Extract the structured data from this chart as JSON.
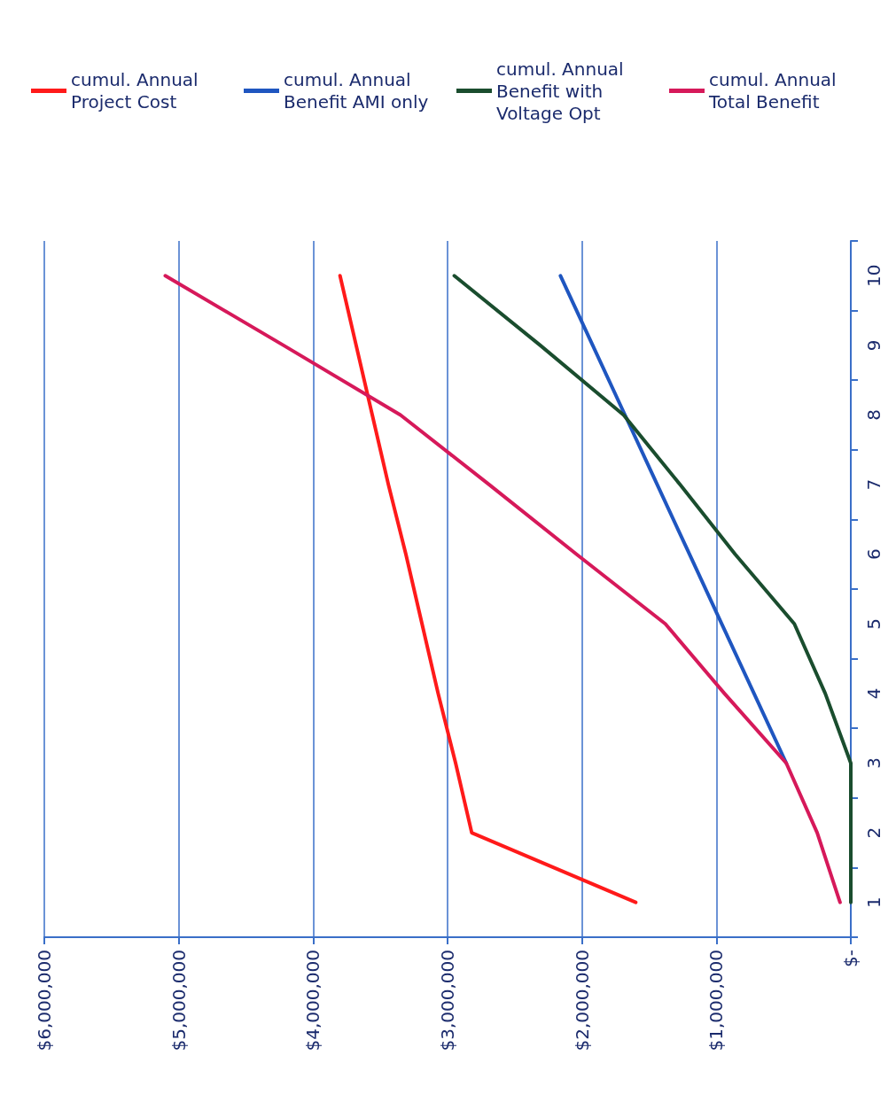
{
  "chart_data": {
    "type": "line",
    "orientation": "horizontal",
    "categories": [
      "10",
      "9",
      "8",
      "7",
      "6",
      "5",
      "4",
      "3",
      "2",
      "1"
    ],
    "series": [
      {
        "name": "cumul. Annual Project Cost",
        "color": "#ff1a1a",
        "values": [
          3800000,
          3680000,
          3560000,
          3440000,
          3310000,
          3190000,
          3070000,
          2940000,
          2820000,
          1600000
        ]
      },
      {
        "name": "cumul. Annual Benefit AMI only",
        "color": "#1f56c0",
        "values": [
          2160000,
          1920000,
          1680000,
          1440000,
          1200000,
          960000,
          720000,
          480000,
          null,
          null
        ]
      },
      {
        "name": "cumul. Annual Benefit with Voltage Opt",
        "color": "#1a4d2e",
        "values": [
          2950000,
          2310000,
          1690000,
          1270000,
          860000,
          420000,
          190000,
          0,
          0,
          0
        ]
      },
      {
        "name": "cumul. Annual Total Benefit",
        "color": "#d6195a",
        "values": [
          5100000,
          4220000,
          3350000,
          2690000,
          2040000,
          1380000,
          940000,
          480000,
          250000,
          80000
        ]
      }
    ],
    "xlim": [
      6000000,
      0
    ],
    "xticks": [
      {
        "value": 6000000,
        "label": "$6,000,000"
      },
      {
        "value": 5000000,
        "label": "$5,000,000"
      },
      {
        "value": 4000000,
        "label": "$4,000,000"
      },
      {
        "value": 3000000,
        "label": "$3,000,000"
      },
      {
        "value": 2000000,
        "label": "$2,000,000"
      },
      {
        "value": 1000000,
        "label": "$1,000,000"
      },
      {
        "value": 0,
        "label": "$-"
      }
    ],
    "grid": "x",
    "legend": "top",
    "marker": "none",
    "line_style": "solid"
  }
}
